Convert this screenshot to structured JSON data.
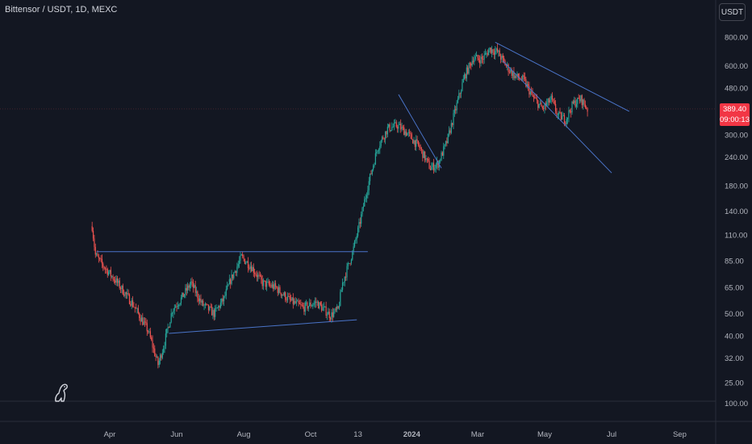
{
  "header": {
    "title": "Bittensor / USDT, 1D, MEXC",
    "currency_button": "USDT"
  },
  "last_price": {
    "price": "389.40",
    "countdown": "09:00:13"
  },
  "indicator_pane": {
    "label": "100.00"
  },
  "colors": {
    "background": "#131722",
    "up": "#26a69a",
    "down": "#ef5350",
    "trendline": "#4a74c9",
    "axis_text": "#b2b5be",
    "price_badge": "#f23645"
  },
  "chart_data": {
    "type": "candlestick",
    "symbol": "Bittensor / USDT",
    "interval": "1D",
    "exchange": "MEXC",
    "y_scale": "log",
    "y_ticks": [
      "800.00",
      "600.00",
      "480.00",
      "300.00",
      "240.00",
      "180.00",
      "140.00",
      "110.00",
      "85.00",
      "65.00",
      "50.00",
      "40.00",
      "32.00",
      "25.00"
    ],
    "x_ticks": [
      "Apr",
      "Jun",
      "Aug",
      "Oct",
      "13",
      "2024",
      "Mar",
      "May",
      "Jul",
      "Sep"
    ],
    "x_range": [
      "2023-03-14",
      "2024-10-01"
    ],
    "y_range": [
      22,
      1000
    ],
    "price_path": [
      [
        "2023-03-16",
        120
      ],
      [
        "2023-03-19",
        90
      ],
      [
        "2023-03-25",
        82
      ],
      [
        "2023-04-08",
        68
      ],
      [
        "2023-04-22",
        55
      ],
      [
        "2023-05-06",
        42
      ],
      [
        "2023-05-15",
        30
      ],
      [
        "2023-05-20",
        36
      ],
      [
        "2023-05-28",
        52
      ],
      [
        "2023-06-05",
        58
      ],
      [
        "2023-06-14",
        68
      ],
      [
        "2023-06-24",
        55
      ],
      [
        "2023-07-05",
        50
      ],
      [
        "2023-07-14",
        58
      ],
      [
        "2023-07-20",
        70
      ],
      [
        "2023-07-30",
        88
      ],
      [
        "2023-08-08",
        80
      ],
      [
        "2023-08-18",
        68
      ],
      [
        "2023-08-30",
        65
      ],
      [
        "2023-09-12",
        57
      ],
      [
        "2023-09-24",
        53
      ],
      [
        "2023-10-06",
        56
      ],
      [
        "2023-10-19",
        49
      ],
      [
        "2023-10-26",
        52
      ],
      [
        "2023-10-30",
        68
      ],
      [
        "2023-11-08",
        92
      ],
      [
        "2023-11-14",
        120
      ],
      [
        "2023-11-22",
        180
      ],
      [
        "2023-12-01",
        265
      ],
      [
        "2023-12-10",
        320
      ],
      [
        "2023-12-19",
        330
      ],
      [
        "2023-12-28",
        305
      ],
      [
        "2024-01-08",
        265
      ],
      [
        "2024-01-18",
        215
      ],
      [
        "2024-01-25",
        225
      ],
      [
        "2024-02-02",
        280
      ],
      [
        "2024-02-10",
        390
      ],
      [
        "2024-02-18",
        540
      ],
      [
        "2024-02-26",
        650
      ],
      [
        "2024-03-05",
        640
      ],
      [
        "2024-03-12",
        710
      ],
      [
        "2024-03-19",
        690
      ],
      [
        "2024-03-27",
        600
      ],
      [
        "2024-04-04",
        540
      ],
      [
        "2024-04-12",
        520
      ],
      [
        "2024-04-20",
        440
      ],
      [
        "2024-04-29",
        390
      ],
      [
        "2024-05-07",
        430
      ],
      [
        "2024-05-13",
        365
      ],
      [
        "2024-05-20",
        350
      ],
      [
        "2024-05-27",
        410
      ],
      [
        "2024-06-03",
        430
      ],
      [
        "2024-06-09",
        389.4
      ]
    ],
    "last_price": 389.4,
    "trendlines": [
      {
        "name": "resistance",
        "from": [
          "2023-03-20",
          93
        ],
        "to": [
          "2023-11-22",
          93
        ]
      },
      {
        "name": "support",
        "from": [
          "2023-05-25",
          41
        ],
        "to": [
          "2023-11-12",
          47
        ]
      },
      {
        "name": "flag-1",
        "from": [
          "2023-12-20",
          450
        ],
        "to": [
          "2024-01-28",
          215
        ]
      },
      {
        "name": "channel-upper",
        "from": [
          "2024-03-17",
          760
        ],
        "to": [
          "2024-07-17",
          380
        ]
      },
      {
        "name": "channel-lower",
        "from": [
          "2024-03-24",
          630
        ],
        "to": [
          "2024-07-01",
          205
        ]
      }
    ]
  }
}
